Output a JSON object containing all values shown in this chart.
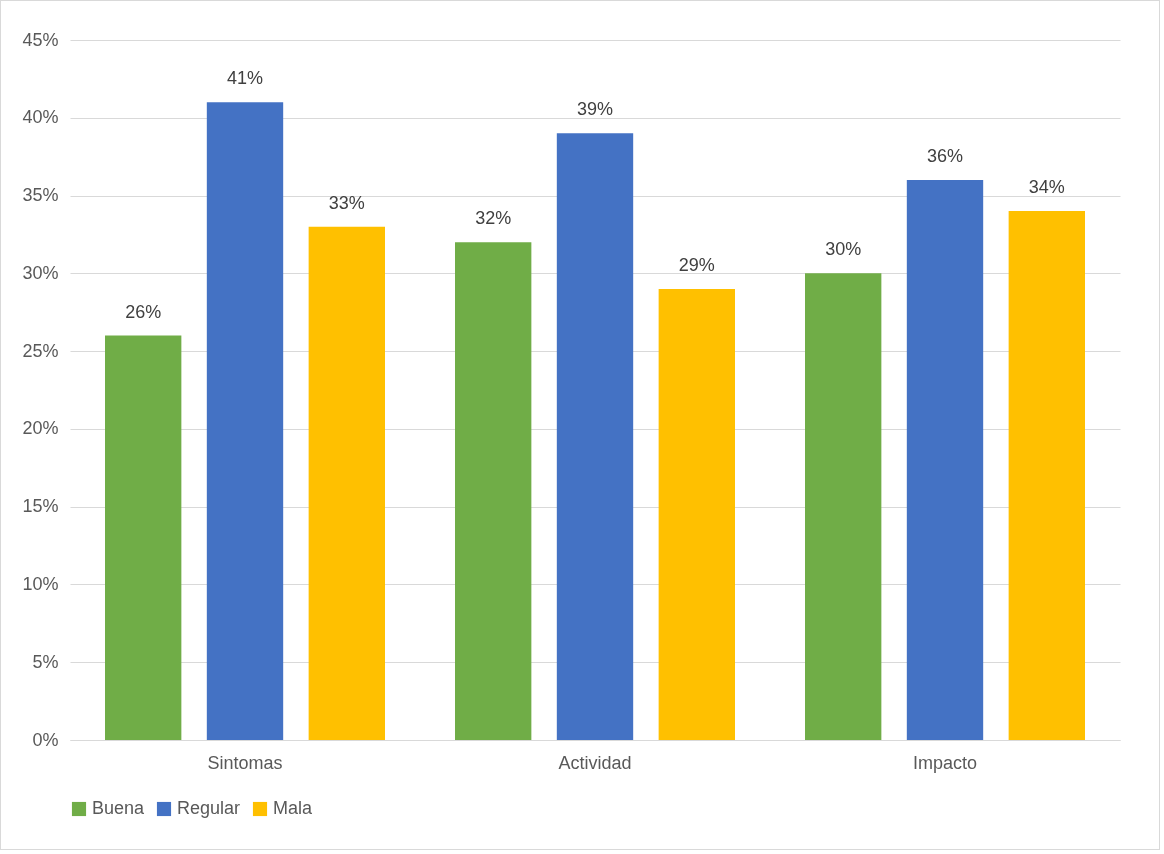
{
  "chart_data": {
    "type": "bar",
    "categories": [
      "Sintomas",
      "Actividad",
      "Impacto"
    ],
    "series": [
      {
        "name": "Buena",
        "color": "#70ad47",
        "values": [
          26,
          32,
          30
        ],
        "value_labels": [
          "26%",
          "32%",
          "30%"
        ]
      },
      {
        "name": "Regular",
        "color": "#4472c4",
        "values": [
          41,
          39,
          36
        ],
        "value_labels": [
          "41%",
          "39%",
          "36%"
        ]
      },
      {
        "name": "Mala",
        "color": "#ffc000",
        "values": [
          33,
          29,
          34
        ],
        "value_labels": [
          "33%",
          "29%",
          "34%"
        ]
      }
    ],
    "ylim": [
      0,
      45
    ],
    "yticks": [
      {
        "value": 0,
        "label": "0%"
      },
      {
        "value": 5,
        "label": "5%"
      },
      {
        "value": 10,
        "label": "10%"
      },
      {
        "value": 15,
        "label": "15%"
      },
      {
        "value": 20,
        "label": "20%"
      },
      {
        "value": 25,
        "label": "25%"
      },
      {
        "value": 30,
        "label": "30%"
      },
      {
        "value": 35,
        "label": "35%"
      },
      {
        "value": 40,
        "label": "40%"
      },
      {
        "value": 45,
        "label": "45%"
      }
    ],
    "grid": "y",
    "legend": "bottom"
  }
}
